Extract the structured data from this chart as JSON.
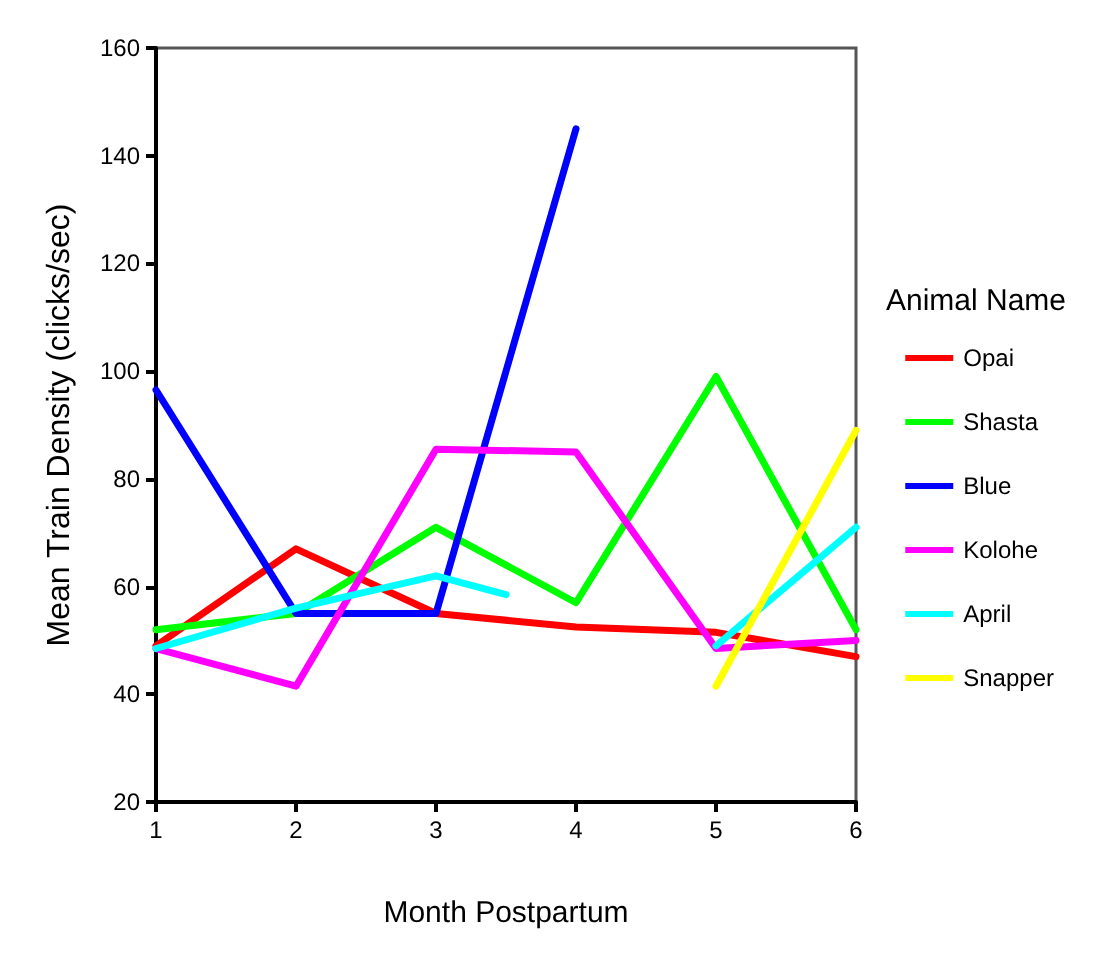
{
  "chart_data": {
    "type": "line",
    "xlabel": "Month Postpartum",
    "ylabel": "Mean Train Density (clicks/sec)",
    "legend_title": "Animal Name",
    "x": [
      1,
      2,
      3,
      4,
      5,
      6
    ],
    "series": [
      {
        "name": "Opai",
        "color": "#ff0000",
        "values": [
          49,
          67,
          55,
          52.5,
          51.5,
          47
        ]
      },
      {
        "name": "Shasta",
        "color": "#00ff00",
        "values": [
          52,
          55,
          71,
          57,
          99,
          52
        ]
      },
      {
        "name": "Blue",
        "color": "#0000ff",
        "values": [
          96.5,
          55,
          55,
          145,
          null,
          null
        ]
      },
      {
        "name": "Kolohe",
        "color": "#ff00ff",
        "values": [
          48.5,
          41.5,
          85.5,
          85,
          48.5,
          50
        ]
      },
      {
        "name": "April",
        "color": "#00ffff",
        "x": [
          1,
          2,
          3,
          3.5,
          4,
          5,
          6
        ],
        "values": [
          48.5,
          56,
          62,
          58.5,
          null,
          49,
          71
        ]
      },
      {
        "name": "Snapper",
        "color": "#ffff00",
        "values": [
          null,
          null,
          null,
          null,
          41.5,
          89
        ]
      }
    ],
    "xlim": [
      1,
      6
    ],
    "xticks": [
      1,
      2,
      3,
      4,
      5,
      6
    ],
    "ylim": [
      20,
      160
    ],
    "yticks": [
      20,
      40,
      60,
      80,
      100,
      120,
      140,
      160
    ],
    "grid": false,
    "legend": "right",
    "marker": "none",
    "line_style": "solid"
  }
}
